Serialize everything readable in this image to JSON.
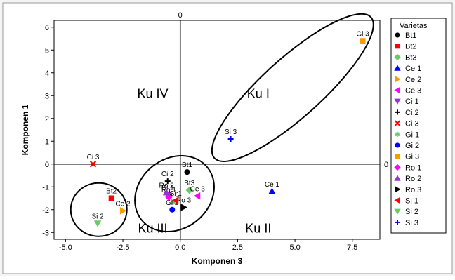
{
  "chart_data": {
    "type": "scatter",
    "title": "",
    "xlabel": "Komponen 3",
    "ylabel": "Komponen 1",
    "xlim": [
      -5.5,
      8.7
    ],
    "ylim": [
      -3.3,
      6.3
    ],
    "xticks": [
      "-5.0",
      "-2.5",
      "0.0",
      "2.5",
      "5.0",
      "7.5"
    ],
    "yticks": [
      "6",
      "5",
      "4",
      "3",
      "2",
      "1",
      "0",
      "-1",
      "-2",
      "-3"
    ],
    "xtick_values": [
      -5,
      -2.5,
      0,
      2.5,
      5,
      7.5
    ],
    "ytick_values": [
      6,
      5,
      4,
      3,
      2,
      1,
      0,
      -1,
      -2,
      -3
    ],
    "reference_lines": {
      "x": 0,
      "y": 0,
      "x_label": "0",
      "y_label": "0"
    },
    "quadrants": [
      {
        "label": "Ku I",
        "x": 3.4,
        "y": 2.9
      },
      {
        "label": "Ku II",
        "x": 3.4,
        "y": -3.0
      },
      {
        "label": "Ku III",
        "x": -1.2,
        "y": -3.0
      },
      {
        "label": "Ku IV",
        "x": -1.2,
        "y": 2.9
      }
    ],
    "legend": {
      "title": "Varietas",
      "placement": "right"
    },
    "series": [
      {
        "name": "Bt1",
        "marker": "circle",
        "color": "#000000",
        "x": 0.3,
        "y": -0.35,
        "label": "Bt1"
      },
      {
        "name": "Bt2",
        "marker": "square",
        "color": "#ff0000",
        "x": -3.0,
        "y": -1.5,
        "label": "Bt2"
      },
      {
        "name": "Bt3",
        "marker": "diamond",
        "color": "#66cc66",
        "x": 0.4,
        "y": -1.15,
        "label": "Bt3"
      },
      {
        "name": "Ce 1",
        "marker": "triangle-up",
        "color": "#0000ff",
        "x": 4.0,
        "y": -1.2,
        "label": "Ce 1"
      },
      {
        "name": "Ce 2",
        "marker": "triangle-right",
        "color": "#ff9900",
        "x": -2.5,
        "y": -2.05,
        "label": "Ce 2"
      },
      {
        "name": "Ce 3",
        "marker": "triangle-left",
        "color": "#ff00ff",
        "x": 0.75,
        "y": -1.4,
        "label": "Ce 3"
      },
      {
        "name": "Ci 1",
        "marker": "triangle-down",
        "color": "#9933cc",
        "x": -0.55,
        "y": -1.35,
        "label": "Ci 1"
      },
      {
        "name": "Ci 2",
        "marker": "plus",
        "color": "#000000",
        "x": -0.55,
        "y": -0.75,
        "label": "Ci 2"
      },
      {
        "name": "Ci 3",
        "marker": "cross",
        "color": "#ff0000",
        "x": -3.8,
        "y": 0.0,
        "label": "Ci 3"
      },
      {
        "name": "Gi 1",
        "marker": "asterisk",
        "color": "#66cc66",
        "x": -0.3,
        "y": -1.65,
        "label": "Gi 1"
      },
      {
        "name": "Gi 2",
        "marker": "circle",
        "color": "#0000ff",
        "x": -0.35,
        "y": -2.0,
        "label": "Gi 2"
      },
      {
        "name": "Gi 3",
        "marker": "square",
        "color": "#ff9900",
        "x": 7.95,
        "y": 5.4,
        "label": "Gi 3"
      },
      {
        "name": "Ro 1",
        "marker": "diamond",
        "color": "#ff00ff",
        "x": -0.5,
        "y": -1.45,
        "label": "Ro 1"
      },
      {
        "name": "Ro 2",
        "marker": "triangle-up",
        "color": "#9933cc",
        "x": -0.6,
        "y": -1.25,
        "label": "Ro 2"
      },
      {
        "name": "Ro 3",
        "marker": "triangle-right",
        "color": "#000000",
        "x": 0.15,
        "y": -1.9,
        "label": "Ro 3"
      },
      {
        "name": "Si 1",
        "marker": "triangle-left",
        "color": "#ff0000",
        "x": -0.2,
        "y": -1.6,
        "label": "Si 1"
      },
      {
        "name": "Si 2",
        "marker": "triangle-down",
        "color": "#66cc66",
        "x": -3.6,
        "y": -2.6,
        "label": "Si 2"
      },
      {
        "name": "Si 3",
        "marker": "plus",
        "color": "#0000ff",
        "x": 2.2,
        "y": 1.1,
        "label": "Si 3"
      }
    ],
    "groups": [
      {
        "name": "Ku I",
        "cx": 4.9,
        "cy": 3.35,
        "rx": 4.35,
        "ry": 1.15,
        "angle_deg": 42
      },
      {
        "name": "Ku III",
        "cx": -0.25,
        "cy": -1.3,
        "rx": 1.55,
        "ry": 1.3,
        "angle_deg": -35
      },
      {
        "name": "Ku III b",
        "cx": -3.55,
        "cy": -2.0,
        "rx": 1.15,
        "ry": 1.05,
        "angle_deg": 0
      }
    ]
  }
}
